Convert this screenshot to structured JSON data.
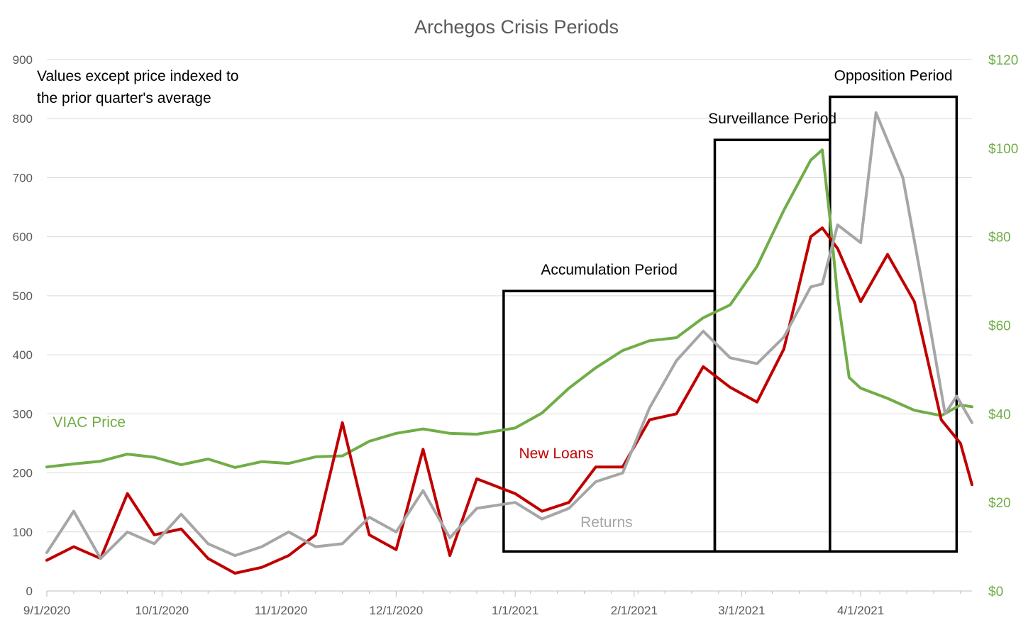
{
  "chart_data": {
    "type": "line",
    "title": "Archegos Crisis Periods",
    "note_lines": [
      "Values except price indexed to",
      "the prior quarter's average"
    ],
    "x_axis": {
      "type": "date",
      "range": [
        "2020-09-01",
        "2021-04-30"
      ],
      "tick_labels": [
        "9/1/2020",
        "10/1/2020",
        "11/1/2020",
        "12/1/2020",
        "1/1/2021",
        "2/1/2021",
        "3/1/2021",
        "4/1/2021"
      ],
      "tick_dates": [
        "2020-09-01",
        "2020-10-01",
        "2020-11-01",
        "2020-12-01",
        "2021-01-01",
        "2021-02-01",
        "2021-03-01",
        "2021-04-01"
      ]
    },
    "y_axis_left": {
      "range": [
        0,
        900
      ],
      "ticks": [
        0,
        100,
        200,
        300,
        400,
        500,
        600,
        700,
        800,
        900
      ],
      "tick_labels": [
        "0",
        "100",
        "200",
        "300",
        "400",
        "500",
        "600",
        "700",
        "800",
        "900"
      ]
    },
    "y_axis_right": {
      "range": [
        0,
        120
      ],
      "ticks": [
        0,
        20,
        40,
        60,
        80,
        100,
        120
      ],
      "tick_labels": [
        "$0",
        "$20",
        "$40",
        "$60",
        "$80",
        "$100",
        "$120"
      ]
    },
    "grid": true,
    "legend": "inline",
    "series": [
      {
        "name": "VIAC Price",
        "axis": "right",
        "color": "#70ad47",
        "label_anchor": {
          "x": "2020-09-02",
          "y": 37
        },
        "points": [
          [
            "2020-09-01",
            28
          ],
          [
            "2020-09-08",
            28.7
          ],
          [
            "2020-09-15",
            29.3
          ],
          [
            "2020-09-22",
            30.9
          ],
          [
            "2020-09-29",
            30.2
          ],
          [
            "2020-10-06",
            28.5
          ],
          [
            "2020-10-13",
            29.8
          ],
          [
            "2020-10-20",
            27.9
          ],
          [
            "2020-10-27",
            29.2
          ],
          [
            "2020-11-03",
            28.8
          ],
          [
            "2020-11-10",
            30.3
          ],
          [
            "2020-11-17",
            30.5
          ],
          [
            "2020-11-24",
            33.8
          ],
          [
            "2020-12-01",
            35.6
          ],
          [
            "2020-12-08",
            36.6
          ],
          [
            "2020-12-15",
            35.6
          ],
          [
            "2020-12-22",
            35.4
          ],
          [
            "2021-01-01",
            36.8
          ],
          [
            "2021-01-08",
            40.2
          ],
          [
            "2021-01-15",
            45.8
          ],
          [
            "2021-01-22",
            50.4
          ],
          [
            "2021-01-29",
            54.3
          ],
          [
            "2021-02-05",
            56.5
          ],
          [
            "2021-02-12",
            57.2
          ],
          [
            "2021-02-19",
            61.7
          ],
          [
            "2021-02-26",
            64.6
          ],
          [
            "2021-03-05",
            73.3
          ],
          [
            "2021-03-12",
            86.0
          ],
          [
            "2021-03-19",
            97.3
          ],
          [
            "2021-03-22",
            99.6
          ],
          [
            "2021-03-24",
            84.2
          ],
          [
            "2021-03-26",
            66.5
          ],
          [
            "2021-03-29",
            48.2
          ],
          [
            "2021-04-01",
            45.8
          ],
          [
            "2021-04-08",
            43.5
          ],
          [
            "2021-04-15",
            40.8
          ],
          [
            "2021-04-22",
            39.6
          ],
          [
            "2021-04-27",
            42.0
          ],
          [
            "2021-04-30",
            41.6
          ]
        ]
      },
      {
        "name": "New Loans",
        "axis": "left",
        "color": "#c00000",
        "label_anchor": {
          "x": "2021-01-02",
          "y": 225
        },
        "points": [
          [
            "2020-09-01",
            52
          ],
          [
            "2020-09-08",
            75
          ],
          [
            "2020-09-15",
            55
          ],
          [
            "2020-09-22",
            165
          ],
          [
            "2020-09-29",
            95
          ],
          [
            "2020-10-06",
            105
          ],
          [
            "2020-10-13",
            55
          ],
          [
            "2020-10-20",
            30
          ],
          [
            "2020-10-27",
            40
          ],
          [
            "2020-11-03",
            60
          ],
          [
            "2020-11-10",
            95
          ],
          [
            "2020-11-17",
            285
          ],
          [
            "2020-11-24",
            95
          ],
          [
            "2020-12-01",
            70
          ],
          [
            "2020-12-08",
            240
          ],
          [
            "2020-12-15",
            60
          ],
          [
            "2020-12-22",
            190
          ],
          [
            "2021-01-01",
            165
          ],
          [
            "2021-01-08",
            135
          ],
          [
            "2021-01-15",
            150
          ],
          [
            "2021-01-22",
            210
          ],
          [
            "2021-01-29",
            210
          ],
          [
            "2021-02-05",
            290
          ],
          [
            "2021-02-12",
            300
          ],
          [
            "2021-02-19",
            380
          ],
          [
            "2021-02-26",
            345
          ],
          [
            "2021-03-05",
            320
          ],
          [
            "2021-03-12",
            410
          ],
          [
            "2021-03-19",
            600
          ],
          [
            "2021-03-22",
            615
          ],
          [
            "2021-03-26",
            580
          ],
          [
            "2021-04-01",
            490
          ],
          [
            "2021-04-08",
            570
          ],
          [
            "2021-04-15",
            490
          ],
          [
            "2021-04-22",
            290
          ],
          [
            "2021-04-27",
            250
          ],
          [
            "2021-04-30",
            180
          ]
        ]
      },
      {
        "name": "Returns",
        "axis": "left",
        "color": "#a6a6a6",
        "label_anchor": {
          "x": "2021-01-18",
          "y": 108
        },
        "points": [
          [
            "2020-09-01",
            65
          ],
          [
            "2020-09-08",
            135
          ],
          [
            "2020-09-15",
            55
          ],
          [
            "2020-09-22",
            100
          ],
          [
            "2020-09-29",
            80
          ],
          [
            "2020-10-06",
            130
          ],
          [
            "2020-10-13",
            80
          ],
          [
            "2020-10-20",
            60
          ],
          [
            "2020-10-27",
            75
          ],
          [
            "2020-11-03",
            100
          ],
          [
            "2020-11-10",
            75
          ],
          [
            "2020-11-17",
            80
          ],
          [
            "2020-11-24",
            125
          ],
          [
            "2020-12-01",
            100
          ],
          [
            "2020-12-08",
            170
          ],
          [
            "2020-12-15",
            90
          ],
          [
            "2020-12-22",
            140
          ],
          [
            "2021-01-01",
            150
          ],
          [
            "2021-01-08",
            122
          ],
          [
            "2021-01-15",
            140
          ],
          [
            "2021-01-22",
            185
          ],
          [
            "2021-01-29",
            200
          ],
          [
            "2021-02-05",
            310
          ],
          [
            "2021-02-12",
            390
          ],
          [
            "2021-02-19",
            440
          ],
          [
            "2021-02-26",
            395
          ],
          [
            "2021-03-05",
            385
          ],
          [
            "2021-03-12",
            430
          ],
          [
            "2021-03-19",
            515
          ],
          [
            "2021-03-22",
            520
          ],
          [
            "2021-03-26",
            620
          ],
          [
            "2021-04-01",
            590
          ],
          [
            "2021-04-05",
            810
          ],
          [
            "2021-04-12",
            700
          ],
          [
            "2021-04-19",
            450
          ],
          [
            "2021-04-23",
            300
          ],
          [
            "2021-04-26",
            330
          ],
          [
            "2021-04-30",
            285
          ]
        ]
      }
    ],
    "periods": [
      {
        "label": "Accumulation Period",
        "start": "2020-12-29",
        "end": "2021-02-22",
        "y_top": 508,
        "y_bottom": 67
      },
      {
        "label": "Surveillance Period",
        "start": "2021-02-22",
        "end": "2021-03-24",
        "y_top": 764,
        "y_bottom": 67
      },
      {
        "label": "Opposition Period",
        "start": "2021-03-24",
        "end": "2021-04-26",
        "y_top": 837,
        "y_bottom": 67
      }
    ]
  }
}
